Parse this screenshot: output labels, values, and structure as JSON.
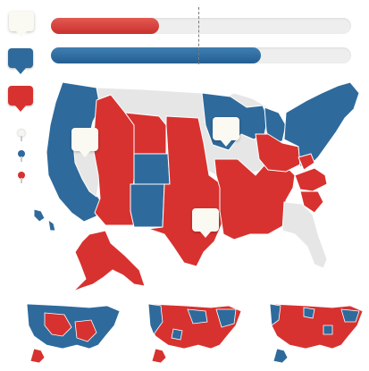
{
  "colors": {
    "republican_red": "#d7322f",
    "democrat_blue": "#2f6a9c",
    "undecided_gray": "#e6e6e6",
    "marker_white": "#fbfaf2"
  },
  "progress": {
    "red_fraction": 0.36,
    "blue_fraction": 0.7,
    "midpoint_fraction": 0.5
  },
  "legend": {
    "markers": [
      "white-marker",
      "blue-marker",
      "red-marker"
    ],
    "small_pins": [
      "white-pin",
      "blue-pin",
      "red-pin"
    ]
  },
  "main_map": {
    "callouts": [
      "white-callout",
      "white-callout",
      "white-callout"
    ]
  },
  "mini_maps": [
    {
      "variant": "mostly-blue"
    },
    {
      "variant": "mixed"
    },
    {
      "variant": "mostly-red"
    }
  ]
}
